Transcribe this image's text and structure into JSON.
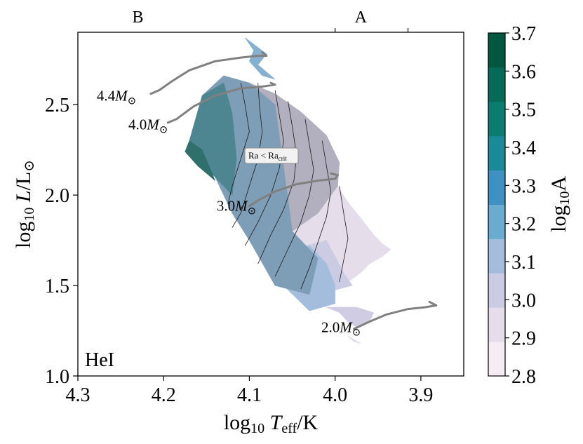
{
  "chart_data": {
    "type": "heatmap",
    "title": "",
    "xlabel": "log10 Teff/K",
    "ylabel": "log10 L/L☉",
    "xlim": [
      4.3,
      3.85
    ],
    "ylim": [
      1.0,
      2.9
    ],
    "xticks": [
      "4.3",
      "4.2",
      "4.1",
      "4.0",
      "3.9"
    ],
    "yticks": [
      "1.0",
      "1.5",
      "2.0",
      "2.5"
    ],
    "grid": false,
    "panel_label": "HeI",
    "spectral_classes": [
      {
        "label": "B",
        "x": 4.23
      },
      {
        "label": "A",
        "x": 3.97
      }
    ],
    "annotation": {
      "text": "Ra < Ra",
      "subscript": "crit",
      "x": 4.088,
      "y": 2.22
    },
    "colorbar": {
      "label": "log10A",
      "min": 2.8,
      "max": 3.7,
      "ticks": [
        "2.8",
        "2.9",
        "3.0",
        "3.1",
        "3.2",
        "3.3",
        "3.4",
        "3.5",
        "3.6",
        "3.7"
      ],
      "colors": [
        "#f5edf3",
        "#e5dde9",
        "#cbcbe3",
        "#a5bddd",
        "#6aaccf",
        "#4091c3",
        "#1a8a99",
        "#0a7c70",
        "#066a58",
        "#01573f"
      ]
    },
    "regions": [
      {
        "name": "cool-edge",
        "value": 2.9,
        "color": "#e5dde9",
        "points": [
          [
            3.997,
            2.05
          ],
          [
            3.985,
            1.96
          ],
          [
            3.968,
            1.86
          ],
          [
            3.955,
            1.78
          ],
          [
            3.945,
            1.73
          ],
          [
            3.935,
            1.7
          ],
          [
            3.945,
            1.66
          ],
          [
            3.96,
            1.62
          ],
          [
            3.97,
            1.57
          ],
          [
            3.985,
            1.52
          ],
          [
            4.02,
            1.6
          ],
          [
            4.05,
            1.78
          ],
          [
            4.03,
            2.02
          ]
        ]
      },
      {
        "name": "mid-band",
        "value": 3.0,
        "color": "#cbcbe3",
        "points": [
          [
            4.01,
            1.75
          ],
          [
            4.0,
            1.66
          ],
          [
            3.99,
            1.57
          ],
          [
            3.98,
            1.5
          ],
          [
            4.02,
            1.45
          ],
          [
            4.04,
            1.53
          ],
          [
            4.05,
            1.7
          ]
        ]
      },
      {
        "name": "blue-patch",
        "value": 3.1,
        "color": "#a5bddd",
        "points": [
          [
            4.03,
            1.72
          ],
          [
            4.01,
            1.62
          ],
          [
            4.0,
            1.5
          ],
          [
            4.0,
            1.4
          ],
          [
            4.03,
            1.36
          ],
          [
            4.06,
            1.5
          ],
          [
            4.05,
            1.7
          ]
        ]
      },
      {
        "name": "grey-overlay",
        "value": 3.05,
        "color": "#b2b0bf",
        "points": [
          [
            4.1,
            2.62
          ],
          [
            4.07,
            2.56
          ],
          [
            4.04,
            2.46
          ],
          [
            4.01,
            2.33
          ],
          [
            3.995,
            2.18
          ],
          [
            3.997,
            2.05
          ],
          [
            4.02,
            1.9
          ],
          [
            4.05,
            1.8
          ],
          [
            4.1,
            2.2
          ],
          [
            4.13,
            2.5
          ]
        ]
      },
      {
        "name": "main-slate",
        "value": 3.15,
        "color": "#7e9db6",
        "points": [
          [
            4.13,
            2.66
          ],
          [
            4.1,
            2.62
          ],
          [
            4.07,
            2.5
          ],
          [
            4.05,
            1.8
          ],
          [
            4.02,
            1.65
          ],
          [
            4.03,
            1.45
          ],
          [
            4.07,
            1.5
          ],
          [
            4.1,
            1.75
          ],
          [
            4.12,
            1.9
          ],
          [
            4.14,
            2.1
          ],
          [
            4.17,
            2.25
          ],
          [
            4.155,
            2.55
          ]
        ]
      },
      {
        "name": "teal-wedge",
        "value": 3.4,
        "color": "#4d8591",
        "points": [
          [
            4.155,
            2.55
          ],
          [
            4.17,
            2.3
          ],
          [
            4.165,
            2.22
          ],
          [
            4.14,
            2.1
          ],
          [
            4.12,
            2.0
          ],
          [
            4.115,
            2.2
          ],
          [
            4.12,
            2.45
          ],
          [
            4.13,
            2.62
          ]
        ]
      },
      {
        "name": "dark-wedge",
        "value": 3.5,
        "color": "#2f6f6c",
        "points": [
          [
            4.17,
            2.3
          ],
          [
            4.175,
            2.24
          ],
          [
            4.16,
            2.16
          ],
          [
            4.14,
            2.08
          ],
          [
            4.155,
            2.25
          ]
        ]
      },
      {
        "name": "top-spike",
        "value": 3.2,
        "color": "#86b0cf",
        "points": [
          [
            4.105,
            2.87
          ],
          [
            4.095,
            2.8
          ],
          [
            4.1,
            2.74
          ],
          [
            4.085,
            2.66
          ],
          [
            4.07,
            2.64
          ],
          [
            4.09,
            2.72
          ],
          [
            4.08,
            2.78
          ]
        ]
      },
      {
        "name": "lower-patch",
        "value": 3.0,
        "color": "#cfcce4",
        "points": [
          [
            4.01,
            1.38
          ],
          [
            3.995,
            1.35
          ],
          [
            3.985,
            1.3
          ],
          [
            3.975,
            1.27
          ],
          [
            3.96,
            1.3
          ],
          [
            3.955,
            1.35
          ],
          [
            3.975,
            1.38
          ]
        ]
      },
      {
        "name": "lower-speck",
        "value": 2.95,
        "color": "#dad5e8",
        "points": [
          [
            3.985,
            1.22
          ],
          [
            3.978,
            1.2
          ],
          [
            3.97,
            1.18
          ],
          [
            3.978,
            1.19
          ]
        ]
      }
    ],
    "contours": [
      [
        [
          4.11,
          2.62
        ],
        [
          4.105,
          2.5
        ],
        [
          4.1,
          2.35
        ],
        [
          4.11,
          2.2
        ],
        [
          4.12,
          2.05
        ],
        [
          4.125,
          1.95
        ]
      ],
      [
        [
          4.09,
          2.62
        ],
        [
          4.088,
          2.48
        ],
        [
          4.085,
          2.35
        ],
        [
          4.09,
          2.2
        ],
        [
          4.1,
          2.05
        ],
        [
          4.11,
          1.9
        ],
        [
          4.12,
          1.82
        ]
      ],
      [
        [
          4.07,
          2.58
        ],
        [
          4.065,
          2.44
        ],
        [
          4.06,
          2.3
        ],
        [
          4.065,
          2.15
        ],
        [
          4.075,
          2.0
        ],
        [
          4.09,
          1.85
        ],
        [
          4.105,
          1.72
        ]
      ],
      [
        [
          4.055,
          2.52
        ],
        [
          4.05,
          2.38
        ],
        [
          4.045,
          2.22
        ],
        [
          4.048,
          2.08
        ],
        [
          4.06,
          1.92
        ],
        [
          4.075,
          1.78
        ],
        [
          4.09,
          1.62
        ]
      ],
      [
        [
          4.035,
          2.42
        ],
        [
          4.03,
          2.28
        ],
        [
          4.025,
          2.14
        ],
        [
          4.03,
          2.0
        ],
        [
          4.04,
          1.85
        ],
        [
          4.055,
          1.7
        ],
        [
          4.07,
          1.55
        ]
      ],
      [
        [
          4.015,
          2.3
        ],
        [
          4.01,
          2.16
        ],
        [
          4.005,
          2.02
        ],
        [
          4.01,
          1.88
        ],
        [
          4.02,
          1.74
        ],
        [
          4.03,
          1.6
        ],
        [
          4.04,
          1.48
        ]
      ],
      [
        [
          3.995,
          2.05
        ],
        [
          3.99,
          1.9
        ],
        [
          3.985,
          1.76
        ],
        [
          3.99,
          1.64
        ],
        [
          3.995,
          1.52
        ]
      ]
    ],
    "tracks": [
      {
        "mass": "4.4",
        "label_x": 4.255,
        "label_y": 2.55,
        "points": [
          [
            4.215,
            2.56
          ],
          [
            4.205,
            2.58
          ],
          [
            4.19,
            2.63
          ],
          [
            4.17,
            2.69
          ],
          [
            4.14,
            2.74
          ],
          [
            4.11,
            2.76
          ],
          [
            4.09,
            2.77
          ],
          [
            4.08,
            2.77
          ],
          [
            4.085,
            2.79
          ]
        ]
      },
      {
        "mass": "4.0",
        "label_x": 4.218,
        "label_y": 2.39,
        "points": [
          [
            4.195,
            2.4
          ],
          [
            4.185,
            2.42
          ],
          [
            4.165,
            2.49
          ],
          [
            4.14,
            2.55
          ],
          [
            4.11,
            2.59
          ],
          [
            4.085,
            2.6
          ],
          [
            4.07,
            2.61
          ],
          [
            4.075,
            2.62
          ]
        ]
      },
      {
        "mass": "3.0",
        "label_x": 4.115,
        "label_y": 1.94,
        "points": [
          [
            4.1,
            1.94
          ],
          [
            4.09,
            1.97
          ],
          [
            4.07,
            2.02
          ],
          [
            4.045,
            2.06
          ],
          [
            4.02,
            2.08
          ],
          [
            4.0,
            2.09
          ],
          [
            3.997,
            2.11
          ],
          [
            4.005,
            2.12
          ]
        ]
      },
      {
        "mass": "2.0",
        "label_x": 3.993,
        "label_y": 1.27,
        "points": [
          [
            3.978,
            1.26
          ],
          [
            3.96,
            1.3
          ],
          [
            3.94,
            1.34
          ],
          [
            3.915,
            1.37
          ],
          [
            3.895,
            1.38
          ],
          [
            3.882,
            1.39
          ],
          [
            3.89,
            1.41
          ]
        ]
      }
    ]
  }
}
